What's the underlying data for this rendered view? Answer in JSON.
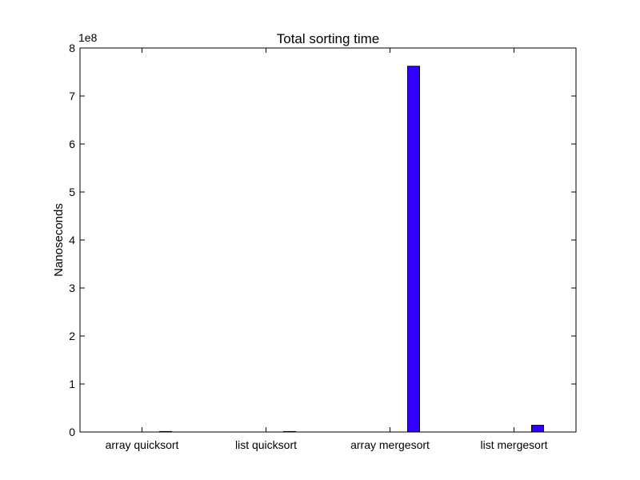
{
  "chart_data": {
    "type": "bar",
    "title": "Total sorting time",
    "xlabel": "",
    "ylabel": "Nanoseconds",
    "scale_label": "1e8",
    "scale_factor": 100000000,
    "categories": [
      "array quicksort",
      "list quicksort",
      "array mergesort",
      "list mergesort"
    ],
    "values": [
      500000,
      500000,
      762000000,
      14000000
    ],
    "ylim": [
      0,
      800000000
    ],
    "yticks": [
      {
        "value": 0,
        "label": "0"
      },
      {
        "value": 100000000,
        "label": "1"
      },
      {
        "value": 200000000,
        "label": "2"
      },
      {
        "value": 300000000,
        "label": "3"
      },
      {
        "value": 400000000,
        "label": "4"
      },
      {
        "value": 500000000,
        "label": "5"
      },
      {
        "value": 600000000,
        "label": "6"
      },
      {
        "value": 700000000,
        "label": "7"
      },
      {
        "value": 800000000,
        "label": "8"
      }
    ],
    "grid": false,
    "legend": "none",
    "bar_color": "#3300ff",
    "edge_color": "#000000"
  }
}
